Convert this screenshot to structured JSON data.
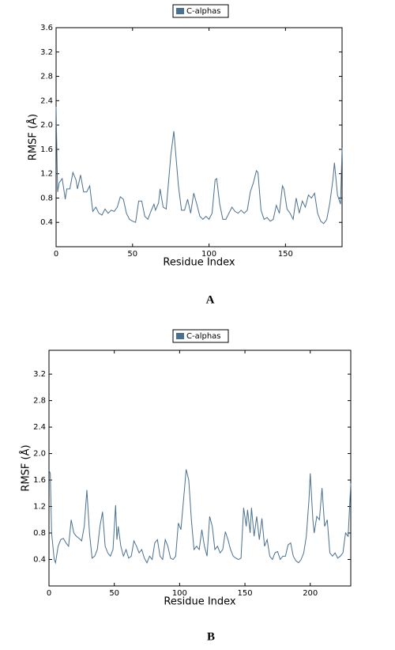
{
  "chart_data": [
    {
      "type": "line",
      "label": "A",
      "xlabel": "Residue Index",
      "ylabel": "RMSF (Å)",
      "xlim": [
        0,
        187
      ],
      "xticks": [
        0,
        50,
        100,
        150
      ],
      "ylim": [
        0,
        3.6
      ],
      "yticks": [
        0.4,
        0.8,
        1.2,
        1.6,
        {
          "value": 2,
          "label": "2.0"
        },
        2.4,
        2.8,
        3.2,
        3.6
      ],
      "legend": "top",
      "x": [
        0,
        1,
        2,
        4,
        6,
        7,
        9,
        11,
        13,
        14,
        16,
        18,
        20,
        22,
        24,
        26,
        28,
        30,
        32,
        34,
        36,
        38,
        40,
        42,
        44,
        46,
        48,
        50,
        52,
        54,
        56,
        58,
        60,
        62,
        64,
        65,
        67,
        68,
        70,
        72,
        74,
        75,
        77,
        78,
        80,
        82,
        84,
        86,
        88,
        90,
        92,
        94,
        96,
        98,
        100,
        102,
        104,
        105,
        107,
        109,
        111,
        113,
        115,
        117,
        119,
        121,
        123,
        125,
        127,
        129,
        131,
        132,
        134,
        136,
        138,
        140,
        142,
        144,
        146,
        148,
        149,
        151,
        153,
        155,
        157,
        159,
        161,
        163,
        165,
        167,
        169,
        171,
        173,
        175,
        177,
        179,
        181,
        182,
        184,
        186,
        187
      ],
      "series": [
        {
          "name": "C-alphas",
          "color": "#4a7090",
          "values": [
            2.3,
            0.9,
            1.05,
            1.12,
            0.78,
            0.95,
            0.95,
            1.22,
            1.1,
            0.95,
            1.18,
            0.9,
            0.9,
            1.0,
            0.58,
            0.65,
            0.55,
            0.52,
            0.62,
            0.55,
            0.6,
            0.58,
            0.65,
            0.82,
            0.78,
            0.55,
            0.45,
            0.42,
            0.4,
            0.75,
            0.75,
            0.5,
            0.45,
            0.58,
            0.7,
            0.6,
            0.72,
            0.95,
            0.65,
            0.62,
            1.2,
            1.5,
            1.9,
            1.6,
            1.0,
            0.6,
            0.6,
            0.78,
            0.55,
            0.88,
            0.7,
            0.5,
            0.45,
            0.5,
            0.45,
            0.55,
            1.1,
            1.12,
            0.7,
            0.45,
            0.45,
            0.55,
            0.65,
            0.58,
            0.55,
            0.6,
            0.55,
            0.6,
            0.9,
            1.05,
            1.25,
            1.22,
            0.6,
            0.45,
            0.48,
            0.42,
            0.45,
            0.68,
            0.55,
            1.0,
            0.95,
            0.62,
            0.55,
            0.45,
            0.8,
            0.55,
            0.75,
            0.65,
            0.85,
            0.8,
            0.88,
            0.55,
            0.42,
            0.38,
            0.45,
            0.72,
            1.1,
            1.38,
            0.85,
            0.7,
            1.62
          ]
        }
      ]
    },
    {
      "type": "line",
      "label": "B",
      "xlabel": "Residue Index",
      "ylabel": "RMSF (Å)",
      "xlim": [
        0,
        231
      ],
      "xticks": [
        0,
        50,
        100,
        150,
        200
      ],
      "ylim": [
        0,
        3.56
      ],
      "yticks": [
        0.4,
        0.8,
        1.2,
        1.6,
        {
          "value": 2,
          "label": "2.0"
        },
        2.4,
        2.8,
        3.2
      ],
      "legend": "top",
      "x": [
        0,
        1,
        2,
        4,
        5,
        7,
        9,
        11,
        13,
        15,
        17,
        19,
        21,
        23,
        25,
        27,
        29,
        31,
        33,
        35,
        37,
        39,
        41,
        43,
        45,
        47,
        49,
        51,
        52,
        53,
        55,
        57,
        59,
        61,
        63,
        65,
        67,
        69,
        71,
        73,
        75,
        77,
        79,
        81,
        83,
        85,
        87,
        89,
        91,
        93,
        95,
        97,
        99,
        101,
        103,
        105,
        107,
        109,
        111,
        113,
        115,
        117,
        119,
        121,
        123,
        125,
        127,
        129,
        131,
        133,
        135,
        137,
        139,
        141,
        143,
        145,
        147,
        149,
        151,
        152,
        154,
        155,
        157,
        159,
        161,
        163,
        165,
        167,
        169,
        171,
        173,
        175,
        177,
        179,
        181,
        183,
        185,
        187,
        189,
        191,
        193,
        195,
        197,
        199,
        200,
        202,
        203,
        205,
        207,
        209,
        211,
        213,
        215,
        217,
        219,
        221,
        223,
        225,
        227,
        229,
        231
      ],
      "series": [
        {
          "name": "C-alphas",
          "color": "#4a7090",
          "values": [
            1.75,
            1.7,
            0.8,
            0.4,
            0.35,
            0.6,
            0.7,
            0.72,
            0.65,
            0.6,
            1.0,
            0.8,
            0.75,
            0.72,
            0.68,
            0.9,
            1.45,
            0.8,
            0.42,
            0.45,
            0.55,
            0.9,
            1.12,
            0.6,
            0.5,
            0.45,
            0.55,
            1.22,
            0.7,
            0.9,
            0.6,
            0.45,
            0.55,
            0.42,
            0.45,
            0.68,
            0.6,
            0.5,
            0.55,
            0.42,
            0.35,
            0.45,
            0.4,
            0.65,
            0.7,
            0.45,
            0.4,
            0.7,
            0.6,
            0.42,
            0.4,
            0.45,
            0.95,
            0.85,
            1.3,
            1.76,
            1.6,
            1.0,
            0.55,
            0.6,
            0.55,
            0.85,
            0.6,
            0.45,
            1.05,
            0.9,
            0.55,
            0.6,
            0.5,
            0.55,
            0.82,
            0.7,
            0.55,
            0.45,
            0.42,
            0.4,
            0.42,
            1.18,
            0.9,
            1.15,
            0.8,
            1.18,
            0.75,
            1.05,
            0.7,
            1.02,
            0.6,
            0.7,
            0.45,
            0.4,
            0.5,
            0.52,
            0.4,
            0.45,
            0.45,
            0.62,
            0.65,
            0.45,
            0.38,
            0.35,
            0.4,
            0.5,
            0.75,
            1.3,
            1.7,
            1.0,
            0.8,
            1.05,
            1.0,
            1.48,
            0.9,
            1.0,
            0.5,
            0.45,
            0.5,
            0.42,
            0.45,
            0.5,
            0.8,
            0.75,
            1.55
          ]
        }
      ]
    }
  ]
}
